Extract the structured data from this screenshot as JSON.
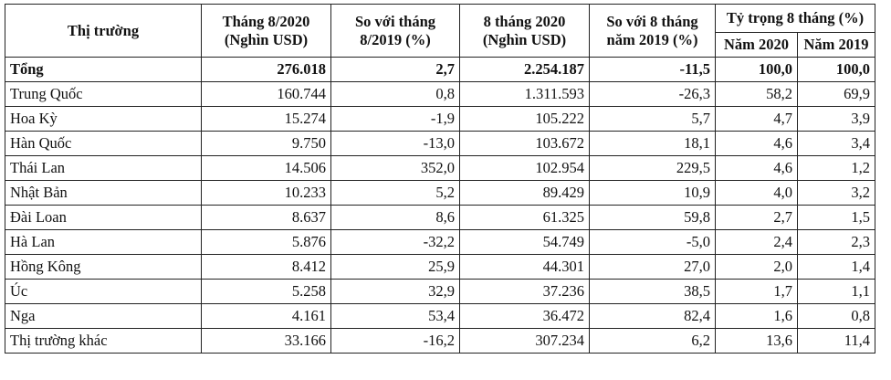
{
  "table": {
    "header": {
      "market": "Thị trường",
      "aug2020": "Tháng 8/2020\n(Nghìn USD)",
      "vs_aug2019": "So với tháng\n8/2019 (%)",
      "ytd2020": "8 tháng 2020\n(Nghìn USD)",
      "vs_ytd2019": "So với 8 tháng\nnăm 2019 (%)",
      "share": "Tỷ trọng 8 tháng (%)",
      "share_2020": "Năm 2020",
      "share_2019": "Năm 2019"
    },
    "rows": [
      [
        "Tổng",
        "276.018",
        "2,7",
        "2.254.187",
        "-11,5",
        "100,0",
        "100,0"
      ],
      [
        "Trung Quốc",
        "160.744",
        "0,8",
        "1.311.593",
        "-26,3",
        "58,2",
        "69,9"
      ],
      [
        "Hoa Kỳ",
        "15.274",
        "-1,9",
        "105.222",
        "5,7",
        "4,7",
        "3,9"
      ],
      [
        "Hàn Quốc",
        "9.750",
        "-13,0",
        "103.672",
        "18,1",
        "4,6",
        "3,4"
      ],
      [
        "Thái Lan",
        "14.506",
        "352,0",
        "102.954",
        "229,5",
        "4,6",
        "1,2"
      ],
      [
        "Nhật Bản",
        "10.233",
        "5,2",
        "89.429",
        "10,9",
        "4,0",
        "3,2"
      ],
      [
        "Đài Loan",
        "8.637",
        "8,6",
        "61.325",
        "59,8",
        "2,7",
        "1,5"
      ],
      [
        "Hà Lan",
        "5.876",
        "-32,2",
        "54.749",
        "-5,0",
        "2,4",
        "2,3"
      ],
      [
        "Hồng Kông",
        "8.412",
        "25,9",
        "44.301",
        "27,0",
        "2,0",
        "1,4"
      ],
      [
        "Úc",
        "5.258",
        "32,9",
        "37.236",
        "38,5",
        "1,7",
        "1,1"
      ],
      [
        "Nga",
        "4.161",
        "53,4",
        "36.472",
        "82,4",
        "1,6",
        "0,8"
      ],
      [
        "Thị trường khác",
        "33.166",
        "-16,2",
        "307.234",
        "6,2",
        "13,6",
        "11,4"
      ]
    ]
  }
}
